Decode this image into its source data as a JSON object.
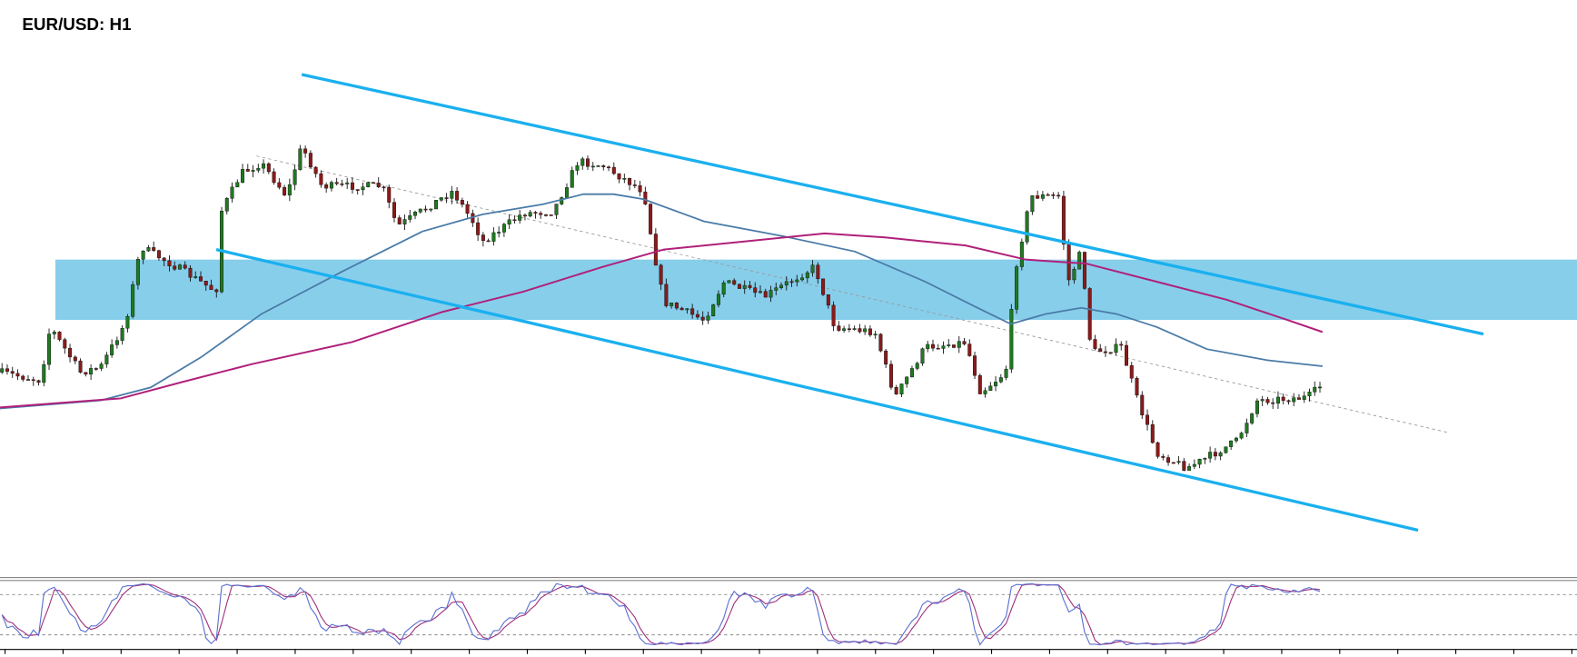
{
  "chart_data": {
    "type": "candlestick",
    "title": "EUR/USD: H1"
  }
}
